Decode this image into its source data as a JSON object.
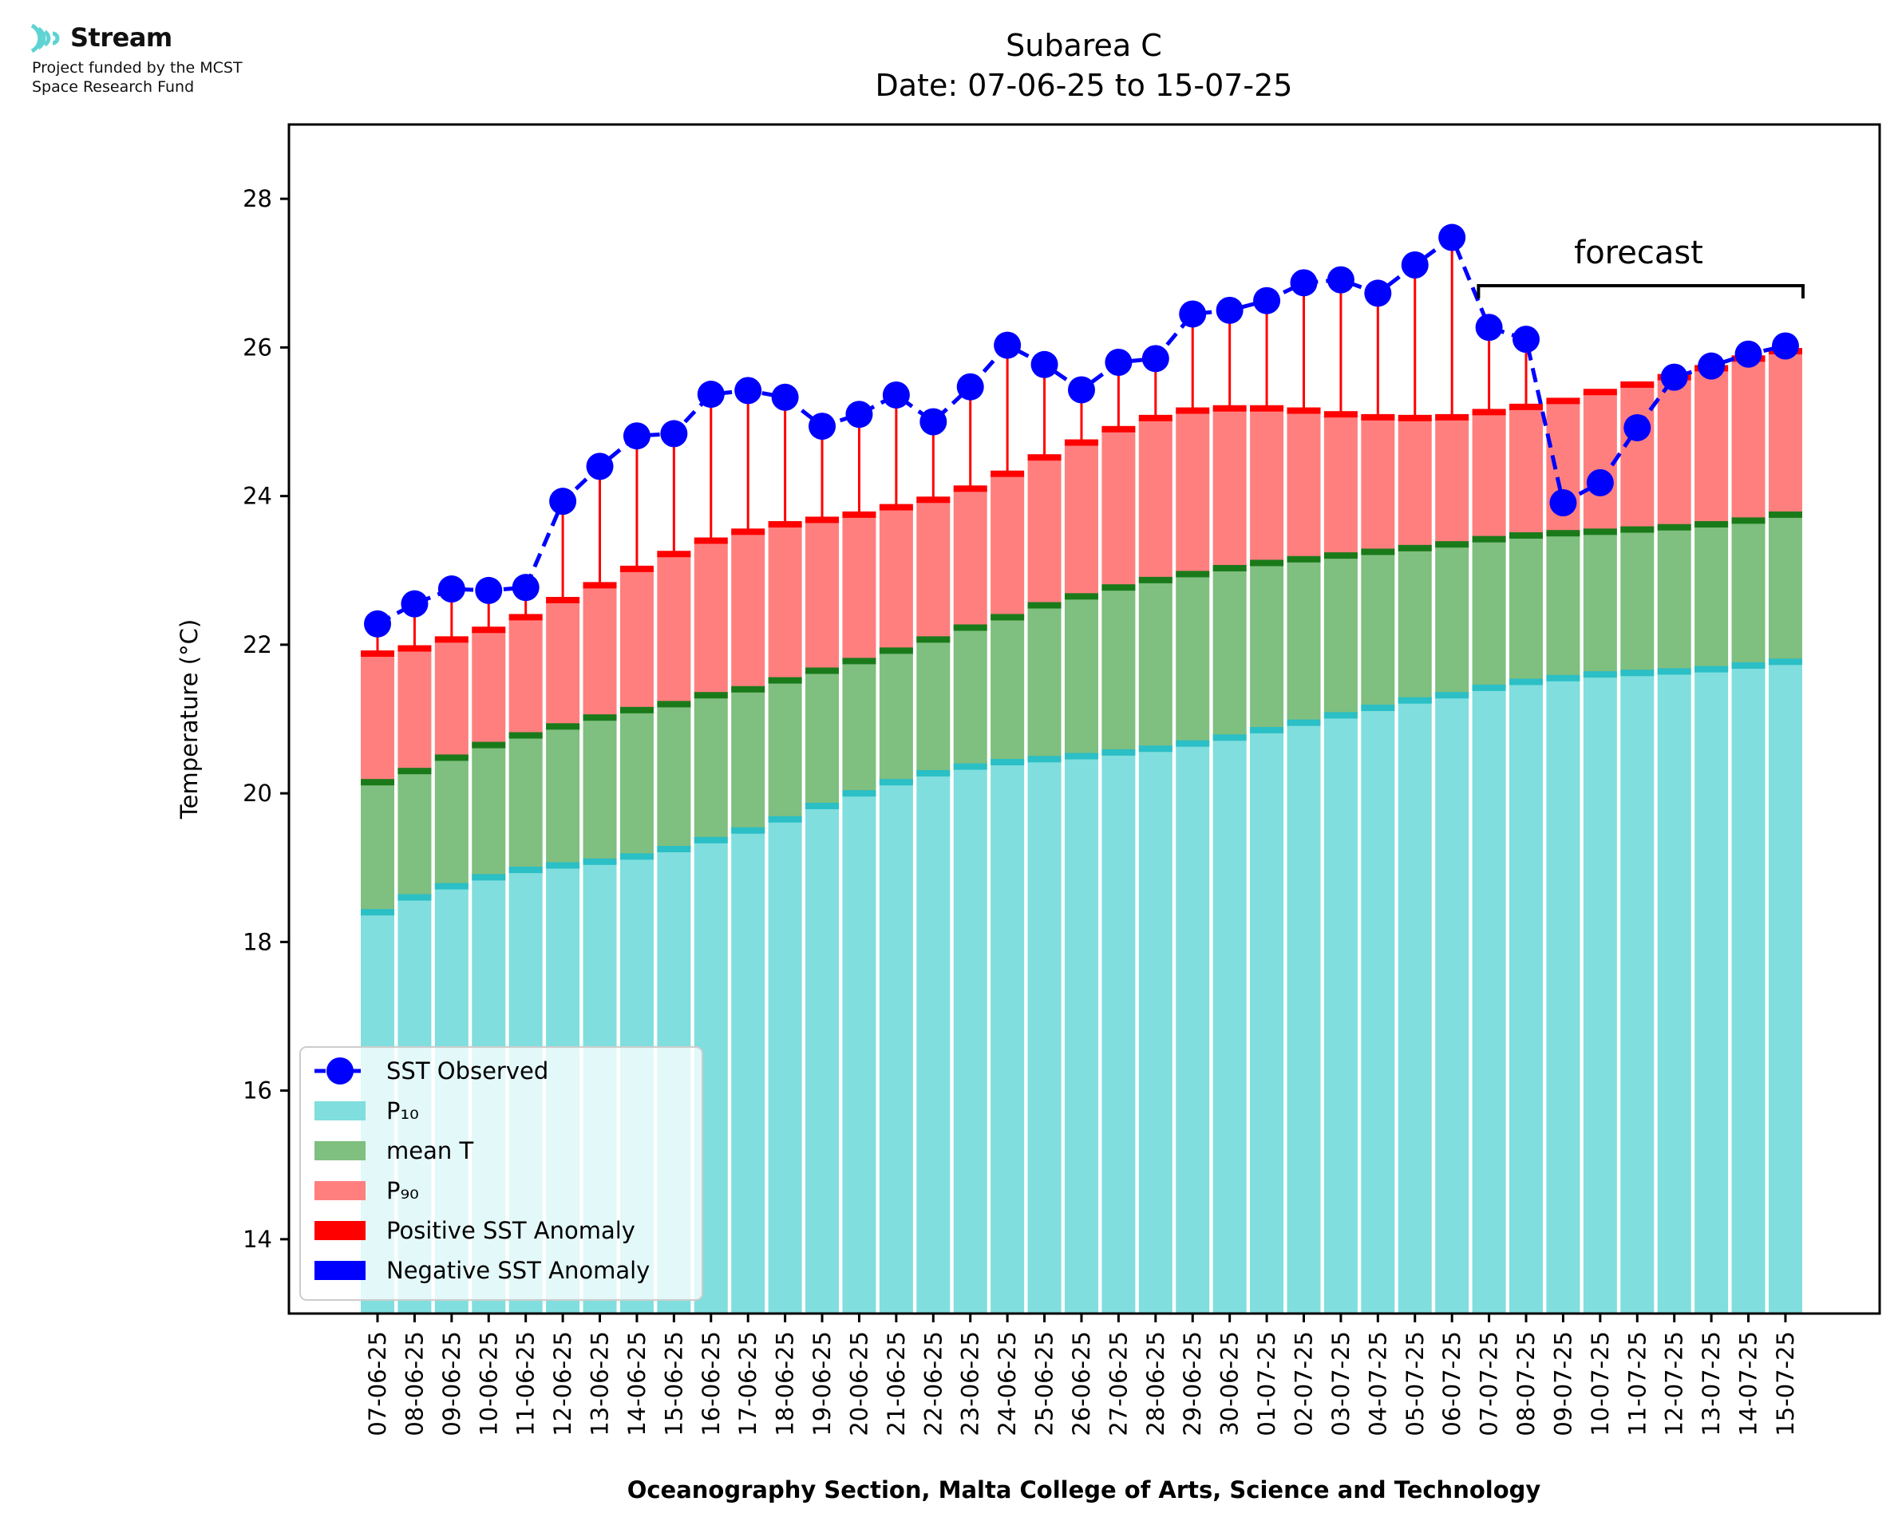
{
  "logo": {
    "name": "Stream",
    "tagline_1": "Project funded by the MCST",
    "tagline_2": "Space Research Fund"
  },
  "colors": {
    "p10": "#80dede",
    "p10_edge": "#2bbfc6",
    "mean": "#7fbf7f",
    "mean_edge": "#1a7a1a",
    "p90": "#ff7f7f",
    "p90_edge": "#ff0000",
    "positive_anomaly": "#ff0000",
    "negative_anomaly": "#0000ff",
    "sst": "#0000ff",
    "axis": "#000000",
    "forecast_bracket": "#000000"
  },
  "chart_data": {
    "type": "bar",
    "title_line1": "Subarea C",
    "title_line2": "Date: 07-06-25 to 15-07-25",
    "xlabel": "Oceanography Section, Malta College of Arts, Science and Technology",
    "ylabel": "Temperature (°C)",
    "ylim": [
      13,
      29
    ],
    "yticks": [
      14,
      16,
      18,
      20,
      22,
      24,
      26,
      28
    ],
    "categories": [
      "07-06-25",
      "08-06-25",
      "09-06-25",
      "10-06-25",
      "11-06-25",
      "12-06-25",
      "13-06-25",
      "14-06-25",
      "15-06-25",
      "16-06-25",
      "17-06-25",
      "18-06-25",
      "19-06-25",
      "20-06-25",
      "21-06-25",
      "22-06-25",
      "23-06-25",
      "24-06-25",
      "25-06-25",
      "26-06-25",
      "27-06-25",
      "28-06-25",
      "29-06-25",
      "30-06-25",
      "01-07-25",
      "02-07-25",
      "03-07-25",
      "04-07-25",
      "05-07-25",
      "06-07-25",
      "07-07-25",
      "08-07-25",
      "09-07-25",
      "10-07-25",
      "11-07-25",
      "12-07-25",
      "13-07-25",
      "14-07-25",
      "15-07-25"
    ],
    "series": [
      {
        "name": "P₁₀",
        "values": [
          18.4,
          18.6,
          18.75,
          18.87,
          18.97,
          19.03,
          19.08,
          19.15,
          19.25,
          19.37,
          19.5,
          19.65,
          19.83,
          20.0,
          20.15,
          20.27,
          20.36,
          20.42,
          20.46,
          20.5,
          20.55,
          20.6,
          20.67,
          20.75,
          20.85,
          20.95,
          21.05,
          21.15,
          21.25,
          21.32,
          21.42,
          21.5,
          21.55,
          21.6,
          21.62,
          21.64,
          21.67,
          21.72,
          21.77
        ]
      },
      {
        "name": "mean T",
        "values": [
          20.15,
          20.3,
          20.48,
          20.65,
          20.78,
          20.9,
          21.02,
          21.12,
          21.2,
          21.32,
          21.4,
          21.52,
          21.65,
          21.78,
          21.92,
          22.07,
          22.23,
          22.37,
          22.53,
          22.65,
          22.77,
          22.87,
          22.95,
          23.03,
          23.1,
          23.15,
          23.2,
          23.25,
          23.3,
          23.35,
          23.42,
          23.47,
          23.5,
          23.52,
          23.55,
          23.58,
          23.62,
          23.67,
          23.75
        ]
      },
      {
        "name": "P₉₀",
        "values": [
          21.88,
          21.95,
          22.07,
          22.2,
          22.37,
          22.6,
          22.8,
          23.02,
          23.22,
          23.4,
          23.52,
          23.62,
          23.68,
          23.75,
          23.85,
          23.95,
          24.1,
          24.3,
          24.52,
          24.72,
          24.9,
          25.05,
          25.15,
          25.18,
          25.18,
          25.15,
          25.1,
          25.06,
          25.05,
          25.06,
          25.13,
          25.2,
          25.28,
          25.4,
          25.5,
          25.6,
          25.72,
          25.85,
          25.95
        ]
      },
      {
        "name": "SST Observed",
        "values": [
          22.28,
          22.55,
          22.75,
          22.73,
          22.77,
          23.93,
          24.4,
          24.81,
          24.84,
          25.37,
          25.42,
          25.33,
          24.94,
          25.1,
          25.36,
          25.0,
          25.47,
          26.03,
          25.77,
          25.43,
          25.8,
          25.85,
          26.45,
          26.5,
          26.63,
          26.87,
          26.91,
          26.73,
          27.11,
          27.48,
          26.27,
          26.11,
          23.91,
          24.18,
          24.92,
          25.6,
          25.75,
          25.91,
          26.02
        ]
      }
    ],
    "forecast_label": "forecast",
    "forecast_start_index": 30,
    "legend": {
      "position": "lower-left",
      "entries": [
        "SST Observed",
        "P₁₀",
        "mean T",
        "P₉₀",
        "Positive SST Anomaly",
        "Negative SST Anomaly"
      ]
    },
    "grid": false
  }
}
